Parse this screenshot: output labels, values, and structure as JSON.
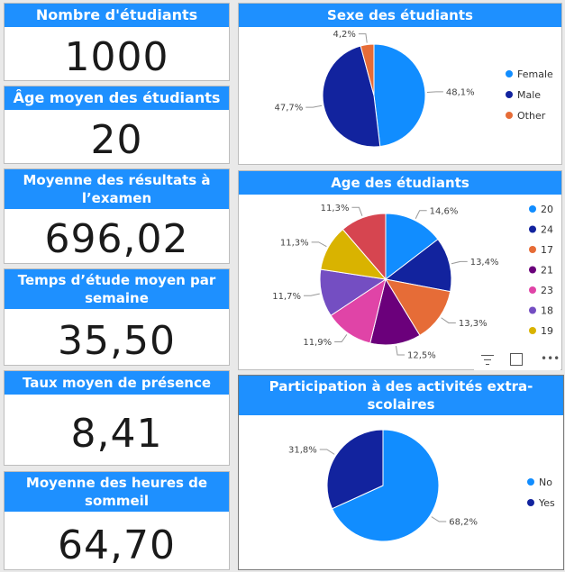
{
  "kpis": [
    {
      "title": "Nombre d'étudiants",
      "value": "1000"
    },
    {
      "title": "Âge moyen des étudiants",
      "value": "20"
    },
    {
      "title": "Moyenne des résultats à l’examen",
      "value": "696,02"
    },
    {
      "title": "Temps d’étude moyen par semaine",
      "value": "35,50"
    },
    {
      "title": "Taux moyen de présence",
      "value": "8,41"
    },
    {
      "title": "Moyenne des heures de sommeil",
      "value": "64,70"
    }
  ],
  "chart_data": [
    {
      "type": "pie",
      "title": "Sexe des étudiants",
      "slices": [
        {
          "label": "Female",
          "value": 48.1,
          "text": "48,1%",
          "color": "#118dff"
        },
        {
          "label": "Male",
          "value": 47.7,
          "text": "47,7%",
          "color": "#12239e"
        },
        {
          "label": "Other",
          "value": 4.2,
          "text": "4,2%",
          "color": "#e66c37"
        }
      ],
      "legend": "right"
    },
    {
      "type": "pie",
      "title": "Age des étudiants",
      "slices": [
        {
          "label": "20",
          "value": 14.6,
          "text": "14,6%",
          "color": "#118dff"
        },
        {
          "label": "24",
          "value": 13.4,
          "text": "13,4%",
          "color": "#12239e"
        },
        {
          "label": "17",
          "value": 13.3,
          "text": "13,3%",
          "color": "#e66c37"
        },
        {
          "label": "21",
          "value": 12.5,
          "text": "12,5%",
          "color": "#6b007b"
        },
        {
          "label": "23",
          "value": 11.9,
          "text": "11,9%",
          "color": "#e044a7"
        },
        {
          "label": "18",
          "value": 11.7,
          "text": "11,7%",
          "color": "#744ec2"
        },
        {
          "label": "19",
          "value": 11.3,
          "text": "11,3%",
          "color": "#d9b300"
        },
        {
          "label": "",
          "value": 11.3,
          "text": "11,3%",
          "color": "#d64550"
        }
      ],
      "legend": "right"
    },
    {
      "type": "pie",
      "title": "Participation à des activités extra-scolaires",
      "slices": [
        {
          "label": "No",
          "value": 68.2,
          "text": "68,2%",
          "color": "#118dff"
        },
        {
          "label": "Yes",
          "value": 31.8,
          "text": "31,8%",
          "color": "#12239e"
        }
      ],
      "legend": "right"
    }
  ]
}
